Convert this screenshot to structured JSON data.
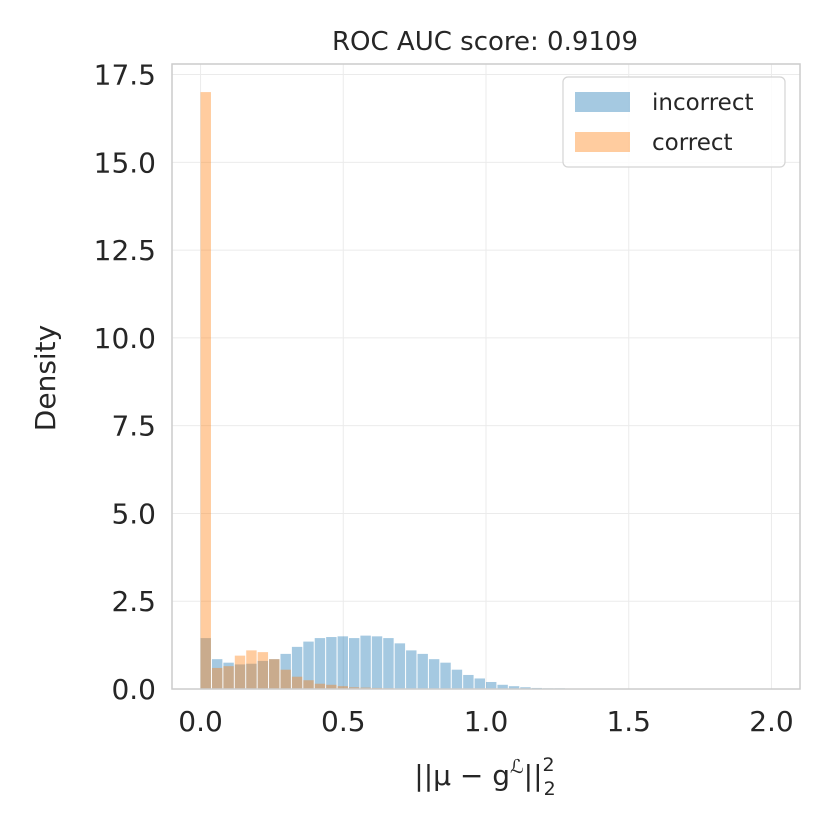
{
  "chart_data": {
    "type": "bar",
    "title": "ROC AUC score: 0.9109",
    "xlabel_parts": {
      "main": "||μ − g",
      "sup": "ℒ",
      "mid": "||",
      "sub": "2",
      "sup2": "2"
    },
    "ylabel": "Density",
    "xlim": [
      -0.1,
      2.1
    ],
    "ylim": [
      0,
      17.8
    ],
    "xticks": [
      0.0,
      0.5,
      1.0,
      1.5,
      2.0
    ],
    "xtick_labels": [
      "0.0",
      "0.5",
      "1.0",
      "1.5",
      "2.0"
    ],
    "yticks": [
      0.0,
      2.5,
      5.0,
      7.5,
      10.0,
      12.5,
      15.0,
      17.5
    ],
    "ytick_labels": [
      "0.0",
      "2.5",
      "5.0",
      "7.5",
      "10.0",
      "12.5",
      "15.0",
      "17.5"
    ],
    "grid": true,
    "legend_position": "top-right",
    "bin_width": 0.04,
    "series": [
      {
        "name": "incorrect",
        "color": "#1f77b4",
        "opacity": 0.4,
        "bin_starts": [
          0.0,
          0.04,
          0.08,
          0.12,
          0.16,
          0.2,
          0.24,
          0.28,
          0.32,
          0.36,
          0.4,
          0.44,
          0.48,
          0.52,
          0.56,
          0.6,
          0.64,
          0.68,
          0.72,
          0.76,
          0.8,
          0.84,
          0.88,
          0.92,
          0.96,
          1.0,
          1.04,
          1.08,
          1.12,
          1.16,
          1.2,
          1.24,
          1.28,
          1.32,
          1.36,
          1.4
        ],
        "values": [
          1.45,
          0.85,
          0.75,
          0.7,
          0.72,
          0.8,
          0.85,
          1.0,
          1.2,
          1.35,
          1.45,
          1.48,
          1.5,
          1.45,
          1.52,
          1.5,
          1.45,
          1.3,
          1.1,
          1.0,
          0.85,
          0.75,
          0.55,
          0.4,
          0.3,
          0.2,
          0.12,
          0.08,
          0.05,
          0.03,
          0.02,
          0.02,
          0.01,
          0.01,
          0.01,
          0.01
        ]
      },
      {
        "name": "correct",
        "color": "#ff7f0e",
        "opacity": 0.4,
        "bin_starts": [
          0.0,
          0.04,
          0.08,
          0.12,
          0.16,
          0.2,
          0.24,
          0.28,
          0.32,
          0.36,
          0.4,
          0.44,
          0.48,
          0.52,
          0.56,
          0.6,
          0.64,
          0.68,
          0.72,
          0.76,
          0.8
        ],
        "values": [
          17.0,
          0.6,
          0.65,
          0.95,
          1.1,
          1.05,
          0.85,
          0.55,
          0.35,
          0.25,
          0.15,
          0.12,
          0.08,
          0.05,
          0.04,
          0.03,
          0.02,
          0.01,
          0.01,
          0.01,
          0.01
        ]
      }
    ]
  }
}
